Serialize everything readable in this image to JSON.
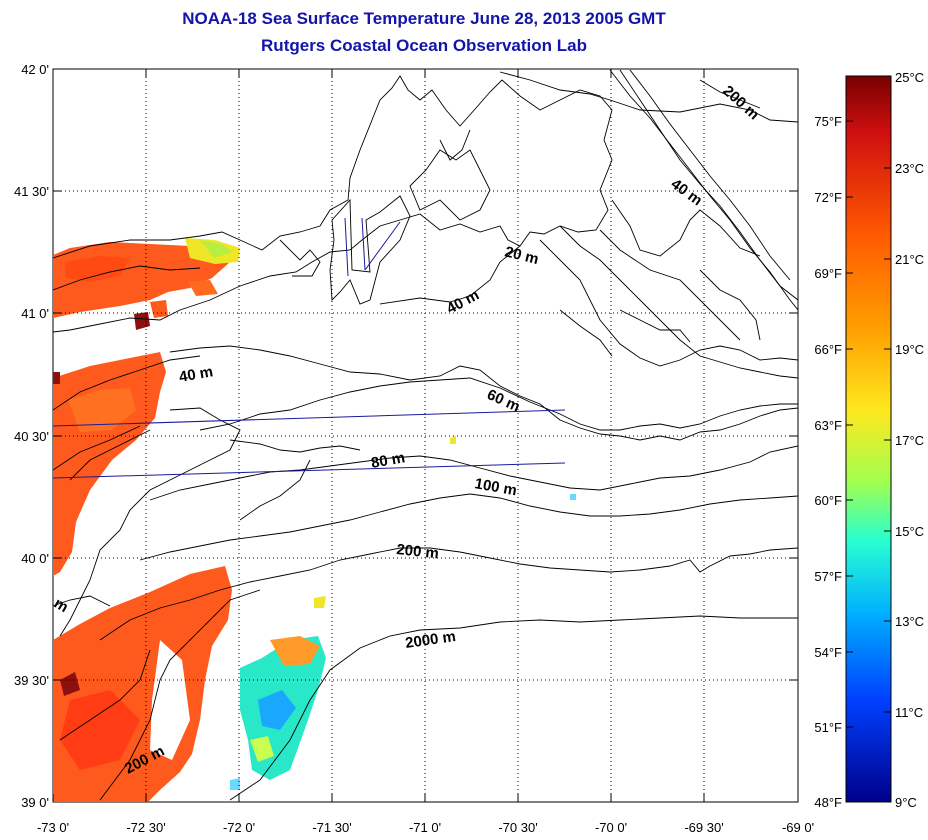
{
  "header": {
    "title": "NOAA-18 Sea Surface Temperature June 28, 2013 2005 GMT",
    "subtitle": "Rutgers Coastal Ocean Observation Lab"
  },
  "map": {
    "lon_labels": [
      "-73 0'",
      "-72 30'",
      "-72 0'",
      "-71 30'",
      "-71 0'",
      "-70 30'",
      "-70 0'",
      "-69 30'",
      "-69 0'"
    ],
    "lat_labels": [
      "42 0'",
      "41 30'",
      "41 0'",
      "40 30'",
      "40 0'",
      "39 30'",
      "39 0'"
    ],
    "contour_labels": [
      "200 m",
      "40 m",
      "20 m",
      "40 m",
      "40 m",
      "60 m",
      "80 m",
      "100 m",
      "200 m",
      "2000 m",
      "200 m",
      "m"
    ]
  },
  "colorbar": {
    "celsius_labels": [
      "25°C",
      "23°C",
      "21°C",
      "19°C",
      "17°C",
      "15°C",
      "13°C",
      "11°C",
      "9°C"
    ],
    "fahrenheit_labels": [
      "75°F",
      "72°F",
      "69°F",
      "66°F",
      "63°F",
      "60°F",
      "57°F",
      "54°F",
      "51°F",
      "48°F"
    ],
    "colors": [
      "#7a0000",
      "#d01010",
      "#ff5a00",
      "#ffa000",
      "#ffe81e",
      "#a0ff50",
      "#28ffd0",
      "#00b0ff",
      "#0040ff",
      "#00008a"
    ]
  }
}
